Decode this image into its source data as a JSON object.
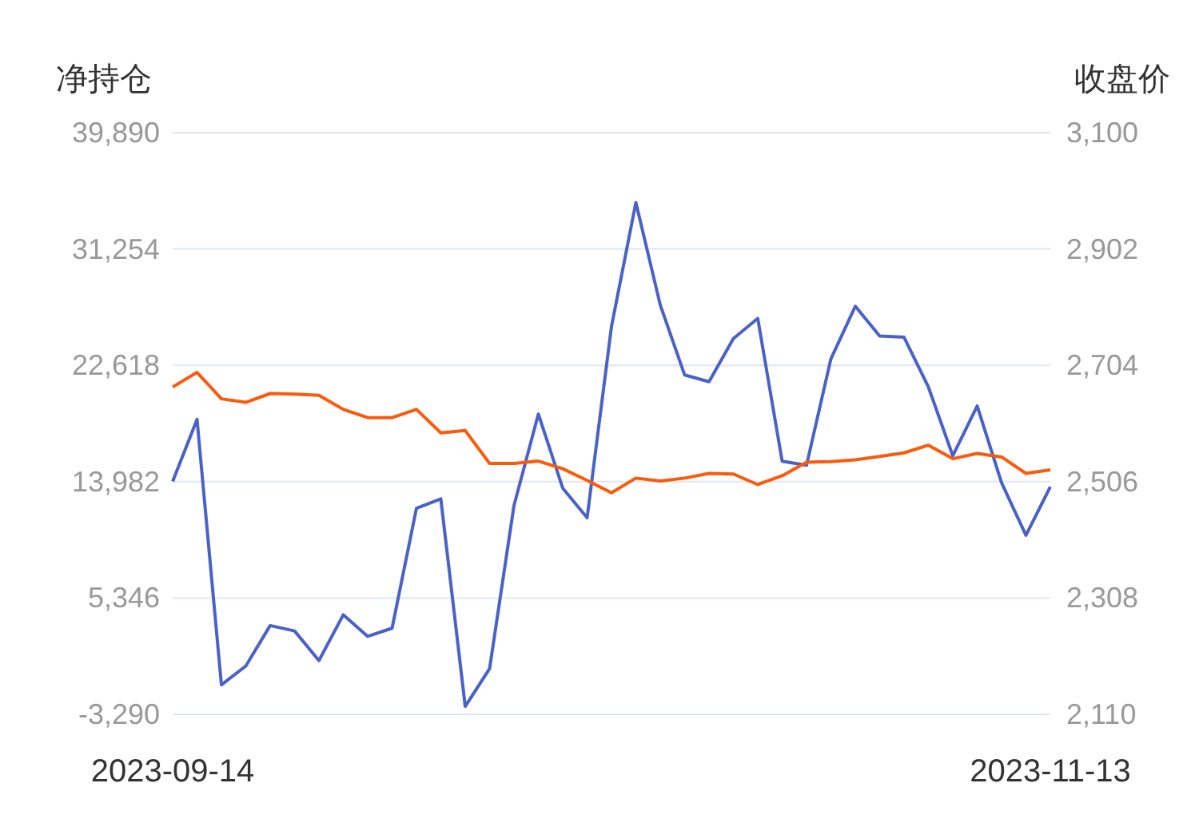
{
  "chart_data": {
    "type": "line",
    "ylabel": "净持仓",
    "y2label": "收盘价",
    "categories": [
      "2023-09-14",
      null,
      null,
      null,
      null,
      null,
      null,
      null,
      null,
      null,
      null,
      null,
      null,
      null,
      null,
      null,
      null,
      null,
      null,
      null,
      null,
      null,
      null,
      null,
      null,
      null,
      null,
      null,
      null,
      null,
      null,
      null,
      null,
      null,
      null,
      null,
      "2023-11-13"
    ],
    "series": [
      {
        "color": "#4a62c6",
        "values": [
          14000,
          18600,
          -1100,
          300,
          3300,
          2900,
          700,
          4100,
          2500,
          3100,
          12000,
          12700,
          -2700,
          100,
          12200,
          19000,
          13500,
          11300,
          25500,
          34700,
          27100,
          21900,
          21400,
          24600,
          26100,
          15500,
          15200,
          23100,
          27000,
          24800,
          24700,
          21000,
          15900,
          19600,
          13900,
          10000,
          13600
        ]
      },
      {
        "color": "#fb5a0a",
        "axis": "y2",
        "values": [
          2667,
          2692,
          2647,
          2641,
          2656,
          2655,
          2653,
          2629,
          2615,
          2615,
          2629,
          2589,
          2593,
          2537,
          2537,
          2541,
          2528,
          2508,
          2487,
          2512,
          2507,
          2512,
          2520,
          2519,
          2501,
          2516,
          2539,
          2540,
          2543,
          2549,
          2555,
          2568,
          2545,
          2554,
          2548,
          2520,
          2526
        ]
      }
    ],
    "ylim": [
      -3290,
      39890
    ],
    "yticks": [
      {
        "value": -3290,
        "label": "-3,290"
      },
      {
        "value": 5346,
        "label": "5,346"
      },
      {
        "value": 13982,
        "label": "13,982"
      },
      {
        "value": 22618,
        "label": "22,618"
      },
      {
        "value": 31254,
        "label": "31,254"
      },
      {
        "value": 39890,
        "label": "39,890"
      }
    ],
    "y2lim": [
      2110,
      3100
    ],
    "y2ticks": [
      {
        "value": 2110,
        "label": "2,110"
      },
      {
        "value": 2308,
        "label": "2,308"
      },
      {
        "value": 2506,
        "label": "2,506"
      },
      {
        "value": 2704,
        "label": "2,704"
      },
      {
        "value": 2902,
        "label": "2,902"
      },
      {
        "value": 3100,
        "label": "3,100"
      }
    ],
    "grid": "y"
  }
}
